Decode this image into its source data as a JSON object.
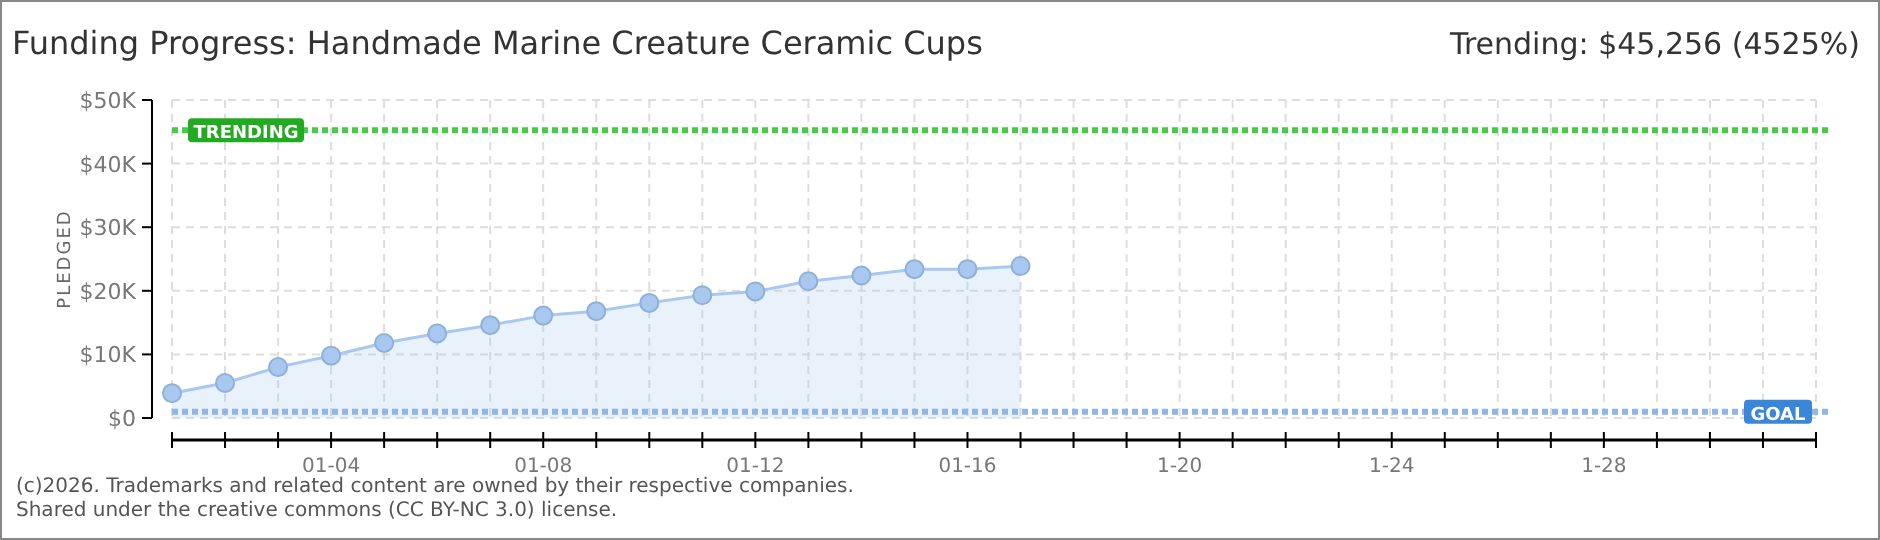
{
  "chart_data": {
    "type": "area",
    "title": "Funding Progress: Handmade Marine Creature Ceramic Cups",
    "subtitle": "Trending: $45,256 (4525%)",
    "ylabel": "PLEDGED",
    "x": [
      "--01-01",
      "--01-02",
      "--01-03",
      "--01-04",
      "--01-05",
      "--01-06",
      "--01-07",
      "--01-08",
      "--01-09",
      "--01-10",
      "--01-11",
      "--01-12",
      "--01-13",
      "--01-14",
      "--01-15",
      "--01-16",
      "--01-17"
    ],
    "series": [
      {
        "color": "#a9c8f0",
        "values": [
          3900,
          5500,
          8000,
          9800,
          11800,
          13300,
          14600,
          16100,
          16800,
          18100,
          19300,
          19900,
          21500,
          22400,
          23400,
          23400,
          23900
        ]
      }
    ],
    "xlim": [
      "--01-01",
      "--02-01"
    ],
    "xticks": [
      {
        "value": "--01-01",
        "label": null
      },
      {
        "value": "--01-02",
        "label": null
      },
      {
        "value": "--01-03",
        "label": null
      },
      {
        "value": "--01-04",
        "label": "01-04"
      },
      {
        "value": "--01-05",
        "label": null
      },
      {
        "value": "--01-06",
        "label": null
      },
      {
        "value": "--01-07",
        "label": null
      },
      {
        "value": "--01-08",
        "label": "01-08"
      },
      {
        "value": "--01-09",
        "label": null
      },
      {
        "value": "--01-10",
        "label": null
      },
      {
        "value": "--01-11",
        "label": null
      },
      {
        "value": "--01-12",
        "label": "01-12"
      },
      {
        "value": "--01-13",
        "label": null
      },
      {
        "value": "--01-14",
        "label": null
      },
      {
        "value": "--01-15",
        "label": null
      },
      {
        "value": "--01-16",
        "label": "01-16"
      },
      {
        "value": "--01-17",
        "label": null
      },
      {
        "value": "--01-18",
        "label": null
      },
      {
        "value": "--01-19",
        "label": null
      },
      {
        "value": "--01-20",
        "label": "1-20"
      },
      {
        "value": "--01-21",
        "label": null
      },
      {
        "value": "--01-22",
        "label": null
      },
      {
        "value": "--01-23",
        "label": null
      },
      {
        "value": "--01-24",
        "label": "1-24"
      },
      {
        "value": "--01-25",
        "label": null
      },
      {
        "value": "--01-26",
        "label": null
      },
      {
        "value": "--01-27",
        "label": null
      },
      {
        "value": "--01-28",
        "label": "1-28"
      },
      {
        "value": "--01-29",
        "label": null
      },
      {
        "value": "--01-30",
        "label": null
      },
      {
        "value": "--01-31",
        "label": null
      },
      {
        "value": "--02-01",
        "label": null
      }
    ],
    "ylim": [
      0,
      50000
    ],
    "yticks": [
      {
        "value": 0,
        "label": "$0"
      },
      {
        "value": 10000,
        "label": "$10K"
      },
      {
        "value": 20000,
        "label": "$20K"
      },
      {
        "value": 30000,
        "label": "$30K"
      },
      {
        "value": 40000,
        "label": "$40K"
      },
      {
        "value": 50000,
        "label": "$50K"
      }
    ],
    "ref_lines": [
      {
        "axis": "y",
        "value": 45256,
        "label": "TRENDING",
        "color": "#44cc44",
        "line_style": "dotted"
      },
      {
        "axis": "y",
        "value": 1000,
        "label": "GOAL",
        "color": "#8fb6e6",
        "line_style": "dotted"
      }
    ],
    "grid": true,
    "marker": "circle",
    "annotations": [
      "(c)2026. Trademarks and related content are owned by their respective companies.",
      "Shared under the creative commons (CC BY-NC 3.0) license."
    ]
  }
}
